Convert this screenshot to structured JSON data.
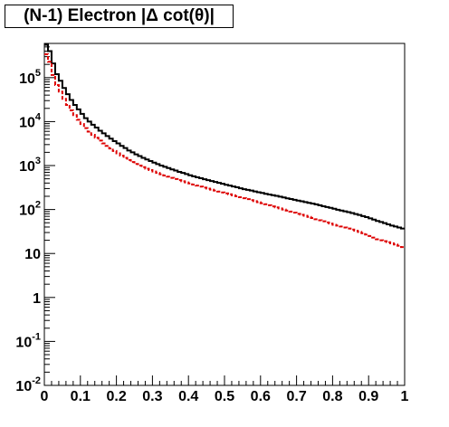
{
  "chart_data": {
    "type": "step-histogram",
    "title": "(N-1) Electron |Δ cot(θ)|",
    "xlabel": "",
    "ylabel": "",
    "xlim": [
      0,
      1
    ],
    "ylim": [
      0.01,
      600000
    ],
    "yscale": "log",
    "grid": false,
    "legend": "none",
    "x_ticks": [
      "0",
      "0.1",
      "0.2",
      "0.3",
      "0.4",
      "0.5",
      "0.6",
      "0.7",
      "0.8",
      "0.9",
      "1"
    ],
    "y_ticks": [
      {
        "base": "10",
        "exp": "-2",
        "value": 0.01
      },
      {
        "base": "10",
        "exp": "-1",
        "value": 0.1
      },
      {
        "base": "1",
        "exp": "",
        "value": 1
      },
      {
        "base": "10",
        "exp": "",
        "value": 10
      },
      {
        "base": "10",
        "exp": "2",
        "value": 100
      },
      {
        "base": "10",
        "exp": "3",
        "value": 1000
      },
      {
        "base": "10",
        "exp": "4",
        "value": 10000
      },
      {
        "base": "10",
        "exp": "5",
        "value": 100000
      }
    ],
    "bin_width": 0.01,
    "series": [
      {
        "color": "#000000",
        "style": "solid",
        "values": [
          560000,
          400000,
          210000,
          120000,
          85000,
          58000,
          42000,
          31000,
          24000,
          19000,
          15000,
          12000,
          10000,
          8500,
          7300,
          6200,
          5400,
          4700,
          4100,
          3600,
          3200,
          2800,
          2500,
          2200,
          2000,
          1800,
          1650,
          1500,
          1380,
          1270,
          1170,
          1080,
          1000,
          940,
          880,
          820,
          770,
          720,
          680,
          640,
          600,
          570,
          540,
          515,
          490,
          465,
          445,
          425,
          405,
          385,
          365,
          350,
          335,
          320,
          305,
          290,
          280,
          270,
          258,
          248,
          238,
          228,
          220,
          212,
          204,
          196,
          188,
          180,
          173,
          166,
          160,
          154,
          148,
          142,
          137,
          131,
          125,
          119,
          114,
          109,
          104,
          99,
          95,
          91,
          87,
          83,
          79,
          75,
          71,
          67,
          63,
          59,
          55,
          52,
          49,
          46,
          43,
          41,
          39,
          37
        ]
      },
      {
        "color": "#dd0000",
        "style": "dashed",
        "values": [
          340000,
          230000,
          115000,
          68000,
          48000,
          33000,
          24000,
          18000,
          14000,
          11000,
          8800,
          7100,
          5900,
          5000,
          4300,
          3700,
          3200,
          2800,
          2450,
          2150,
          1900,
          1680,
          1500,
          1340,
          1200,
          1090,
          1000,
          920,
          850,
          790,
          730,
          680,
          635,
          595,
          560,
          525,
          495,
          465,
          440,
          415,
          392,
          370,
          350,
          332,
          315,
          299,
          284,
          270,
          257,
          245,
          233,
          222,
          211,
          201,
          191,
          181,
          172,
          163,
          155,
          147,
          139,
          132,
          125,
          118,
          112,
          106,
          100,
          95,
          90,
          85,
          80,
          76,
          72,
          68,
          64,
          60,
          57,
          54,
          51,
          48,
          45,
          43,
          41,
          39,
          37,
          35,
          33,
          31,
          29,
          27,
          25,
          23,
          21,
          20,
          19,
          18,
          17,
          16,
          15,
          14
        ]
      }
    ]
  }
}
